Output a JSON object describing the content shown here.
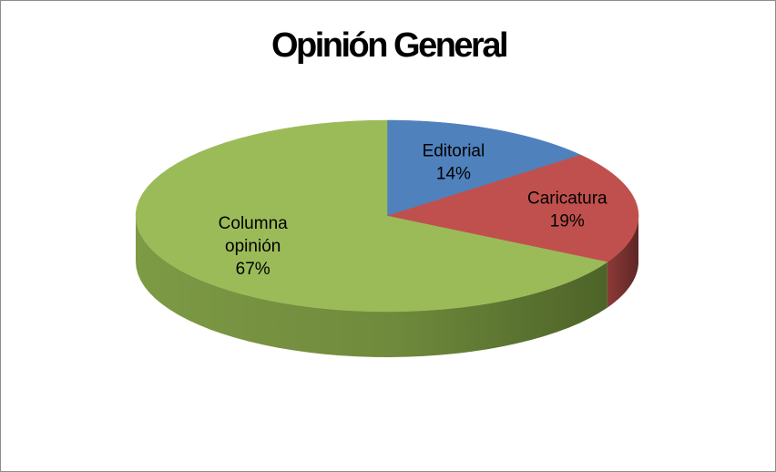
{
  "chart_data": {
    "type": "pie",
    "title": "Opinión General",
    "slices": [
      {
        "label": "Editorial",
        "value": 14,
        "color": "#4f81bd"
      },
      {
        "label": "Caricatura",
        "value": 19,
        "color": "#c0504d"
      },
      {
        "label": "Columna opinión",
        "value": 67,
        "color": "#9bbb59"
      }
    ],
    "data_labels": [
      {
        "name_lines": [
          "Editorial"
        ],
        "pct": "14%"
      },
      {
        "name_lines": [
          "Caricatura"
        ],
        "pct": "19%"
      },
      {
        "name_lines": [
          "Columna",
          "opinión"
        ],
        "pct": "67%"
      }
    ],
    "legend": "none",
    "style": "3d-pie"
  }
}
